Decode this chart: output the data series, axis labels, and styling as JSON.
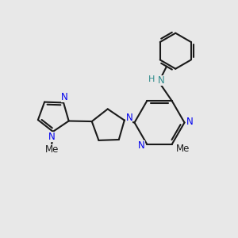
{
  "bg_color": "#e8e8e8",
  "bond_color": "#1a1a1a",
  "N_color": "#0000ee",
  "NH_color": "#2e8b8b",
  "figsize": [
    3.0,
    3.0
  ],
  "dpi": 100,
  "lw": 1.5,
  "fs": 8.5,
  "xlim": [
    0,
    10
  ],
  "ylim": [
    0,
    10
  ]
}
